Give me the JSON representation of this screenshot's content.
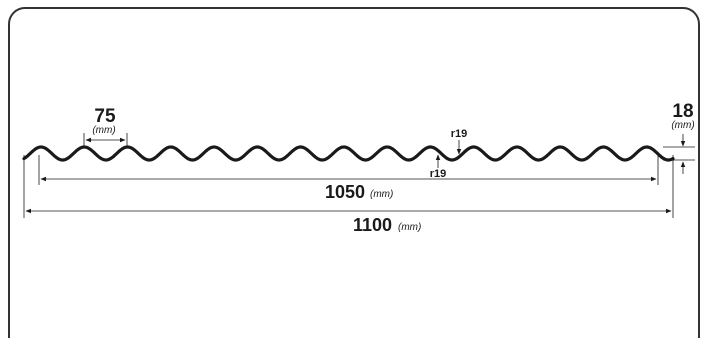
{
  "profile": {
    "pitch_value": "75",
    "pitch_unit": "(mm)",
    "height_value": "18",
    "height_unit": "(mm)",
    "radius_top_label": "r19",
    "radius_bottom_label": "r19",
    "effective_width_value": "1050",
    "effective_width_unit": "(mm)",
    "total_width_value": "1100",
    "total_width_unit": "(mm)",
    "wave_count": 15
  },
  "colors": {
    "line": "#1a1a1a",
    "frame": "#333333"
  }
}
